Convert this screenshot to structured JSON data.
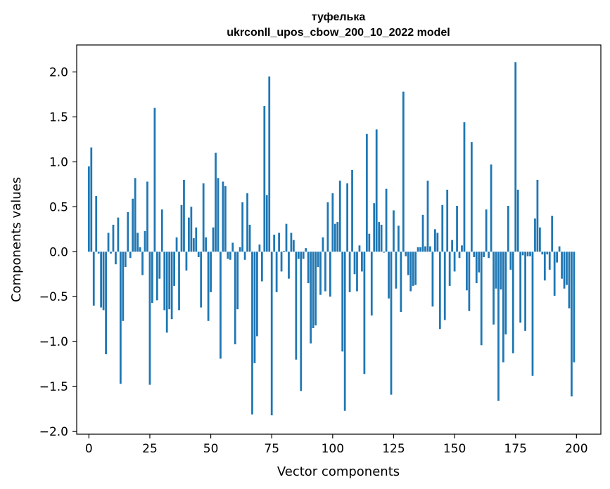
{
  "chart_data": {
    "type": "bar",
    "title_lines": [
      "туфелька",
      "ukrconll_upos_cbow_200_10_2022 model"
    ],
    "xlabel": "Vector components",
    "ylabel": "Components values",
    "xlim": [
      -5,
      210
    ],
    "ylim": [
      -2.03,
      2.3
    ],
    "xticks": [
      0,
      25,
      50,
      75,
      100,
      125,
      150,
      175,
      200
    ],
    "yticks": [
      -2.0,
      -1.5,
      -1.0,
      -0.5,
      0.0,
      0.5,
      1.0,
      1.5,
      2.0
    ],
    "ytick_labels": [
      "−2.0",
      "−1.5",
      "−1.0",
      "−0.5",
      "0.0",
      "0.5",
      "1.0",
      "1.5",
      "2.0"
    ],
    "grid": false,
    "bar_color": "#1f77b4",
    "values": [
      0.95,
      1.16,
      -0.6,
      0.62,
      -0.02,
      -0.62,
      -0.65,
      -1.14,
      0.21,
      -0.02,
      0.3,
      -0.14,
      0.38,
      -1.47,
      -0.77,
      -0.17,
      0.44,
      -0.07,
      0.59,
      0.82,
      0.21,
      0.05,
      -0.26,
      0.23,
      0.78,
      -1.48,
      -0.57,
      1.6,
      -0.54,
      -0.3,
      0.47,
      -0.65,
      -0.9,
      -0.64,
      -0.75,
      -0.38,
      0.16,
      -0.65,
      0.52,
      0.8,
      -0.21,
      0.38,
      0.5,
      0.15,
      0.27,
      -0.06,
      -0.62,
      0.76,
      0.16,
      -0.77,
      -0.45,
      0.27,
      1.1,
      0.82,
      -1.19,
      0.78,
      0.73,
      -0.08,
      -0.09,
      0.1,
      -1.03,
      -0.64,
      0.05,
      0.55,
      -0.09,
      0.65,
      0.3,
      -1.81,
      -1.24,
      -0.94,
      0.08,
      -0.33,
      1.62,
      0.63,
      1.95,
      -1.82,
      0.19,
      -0.45,
      0.21,
      -0.22,
      0.01,
      0.31,
      -0.3,
      0.21,
      0.13,
      -1.2,
      -0.08,
      -1.55,
      -0.08,
      0.04,
      -0.35,
      -1.02,
      -0.85,
      -0.82,
      -0.17,
      -0.48,
      0.16,
      -0.44,
      0.55,
      -0.5,
      0.65,
      0.31,
      0.33,
      0.79,
      -1.11,
      -1.77,
      0.76,
      -0.45,
      0.91,
      -0.25,
      -0.44,
      0.07,
      -0.22,
      -1.36,
      1.31,
      0.2,
      -0.71,
      0.54,
      1.36,
      0.33,
      0.3,
      -0.01,
      0.7,
      -0.52,
      -1.59,
      0.46,
      -0.41,
      0.29,
      -0.67,
      1.78,
      -0.05,
      -0.26,
      -0.44,
      -0.38,
      -0.37,
      0.05,
      0.05,
      0.41,
      0.06,
      0.79,
      0.06,
      -0.61,
      0.25,
      0.21,
      -0.86,
      0.52,
      -0.76,
      0.69,
      -0.38,
      0.13,
      -0.22,
      0.51,
      -0.07,
      0.07,
      1.44,
      -0.43,
      -0.66,
      1.22,
      -0.06,
      -0.35,
      -0.23,
      -1.04,
      -0.06,
      0.47,
      -0.07,
      0.97,
      -0.81,
      -0.41,
      -1.66,
      -0.42,
      -1.23,
      -0.92,
      0.51,
      -0.2,
      -1.13,
      2.11,
      0.69,
      -0.79,
      -0.04,
      -0.88,
      -0.05,
      -0.05,
      -1.38,
      0.37,
      0.8,
      0.27,
      -0.03,
      -0.32,
      -0.03,
      -0.2,
      0.4,
      -0.49,
      -0.12,
      0.06,
      -0.3,
      -0.41,
      -0.37,
      -0.63,
      -1.61,
      -1.23
    ]
  }
}
